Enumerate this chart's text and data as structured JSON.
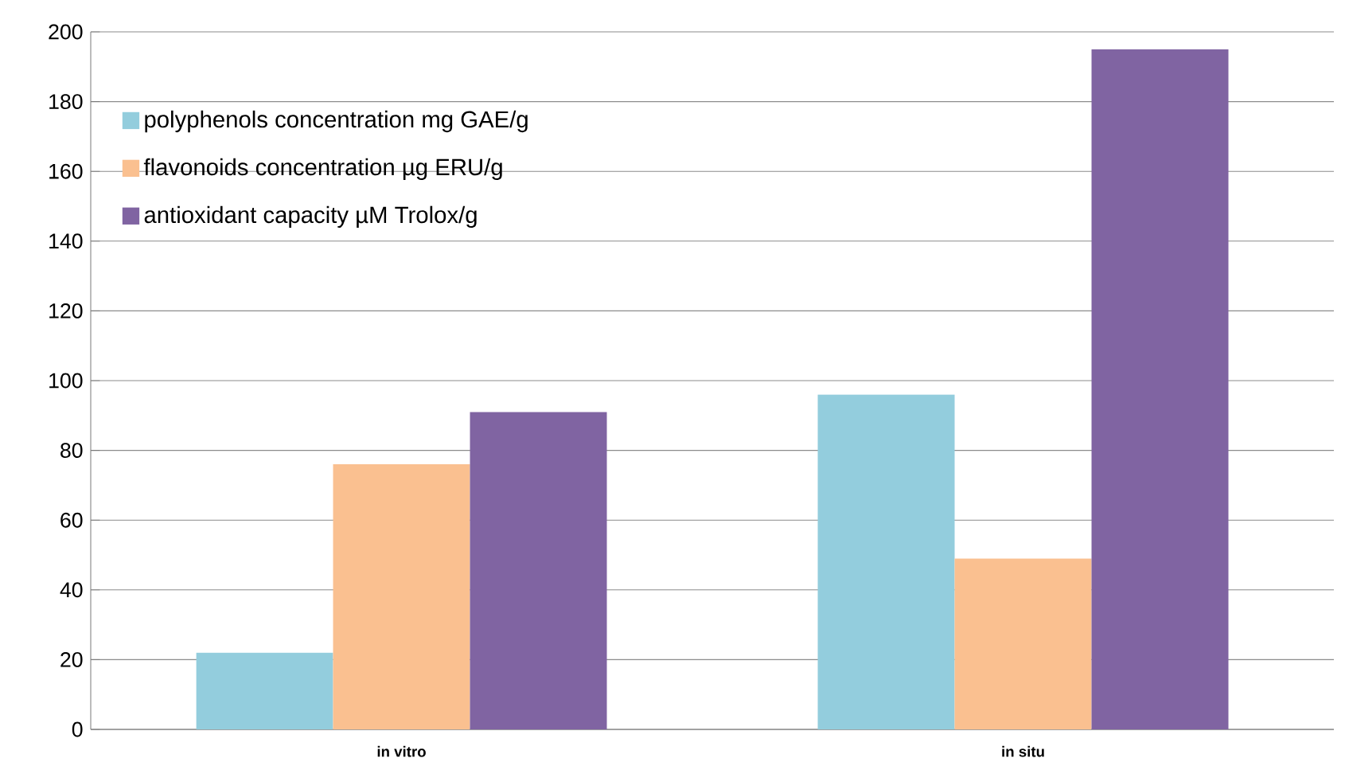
{
  "chart_data": {
    "type": "bar",
    "categories": [
      "in vitro",
      "in situ"
    ],
    "series": [
      {
        "name": "polyphenols concentration mg GAE/g",
        "color": "#93cddd",
        "values": [
          22,
          96
        ]
      },
      {
        "name": "flavonoids concentration µg ERU/g",
        "color": "#fac090",
        "values": [
          76,
          49
        ]
      },
      {
        "name": "antioxidant capacity µM Trolox/g",
        "color": "#8064a2",
        "values": [
          91,
          195
        ]
      }
    ],
    "ylim": [
      0,
      200
    ],
    "yticks": [
      0,
      20,
      40,
      60,
      80,
      100,
      120,
      140,
      160,
      180,
      200
    ],
    "grid": "y",
    "legend": "top left"
  }
}
